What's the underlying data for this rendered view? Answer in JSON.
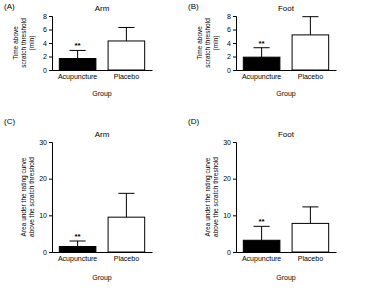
{
  "chart_data": [
    {
      "type": "bar",
      "panel": "(A)",
      "title": "Arm",
      "xlabel": "Group",
      "ylabel": [
        "Time above",
        "scratch threshold",
        "(min)"
      ],
      "categories": [
        "Acupuncture",
        "Placebo"
      ],
      "values": [
        1.7,
        4.3
      ],
      "errors": [
        1.2,
        2.0
      ],
      "colors": [
        "#000000",
        "#ffffff"
      ],
      "ylim": [
        0,
        8
      ],
      "yticks": [
        0,
        2,
        4,
        6,
        8
      ],
      "annotations": [
        {
          "category": "Acupuncture",
          "text": "**"
        }
      ]
    },
    {
      "type": "bar",
      "panel": "(B)",
      "title": "Foot",
      "xlabel": "Group",
      "ylabel": [
        "Time above",
        "scratch threshold",
        "(min)"
      ],
      "categories": [
        "Acupuncture",
        "Placebo"
      ],
      "values": [
        1.9,
        5.2
      ],
      "errors": [
        1.4,
        2.7
      ],
      "colors": [
        "#000000",
        "#ffffff"
      ],
      "ylim": [
        0,
        8
      ],
      "yticks": [
        0,
        2,
        4,
        6,
        8
      ],
      "annotations": [
        {
          "category": "Acupuncture",
          "text": "**"
        }
      ]
    },
    {
      "type": "bar",
      "panel": "(C)",
      "title": "Arm",
      "xlabel": "Group",
      "ylabel": [
        "Area under the rating curve",
        "above the scratch threshold"
      ],
      "categories": [
        "Acupuncture",
        "Placebo"
      ],
      "values": [
        1.5,
        9.5
      ],
      "errors": [
        1.5,
        6.5
      ],
      "colors": [
        "#000000",
        "#ffffff"
      ],
      "ylim": [
        0,
        30
      ],
      "yticks": [
        0,
        10,
        20,
        30
      ],
      "annotations": [
        {
          "category": "Acupuncture",
          "text": "**"
        }
      ]
    },
    {
      "type": "bar",
      "panel": "(D)",
      "title": "Foot",
      "xlabel": "Group",
      "ylabel": [
        "Area under the rating curve",
        "above the scratch threshold"
      ],
      "categories": [
        "Acupuncture",
        "Placebo"
      ],
      "values": [
        3.2,
        7.8
      ],
      "errors": [
        3.8,
        4.5
      ],
      "colors": [
        "#000000",
        "#ffffff"
      ],
      "ylim": [
        0,
        30
      ],
      "yticks": [
        0,
        10,
        20,
        30
      ],
      "annotations": [
        {
          "category": "Acupuncture",
          "text": "**"
        }
      ]
    }
  ]
}
